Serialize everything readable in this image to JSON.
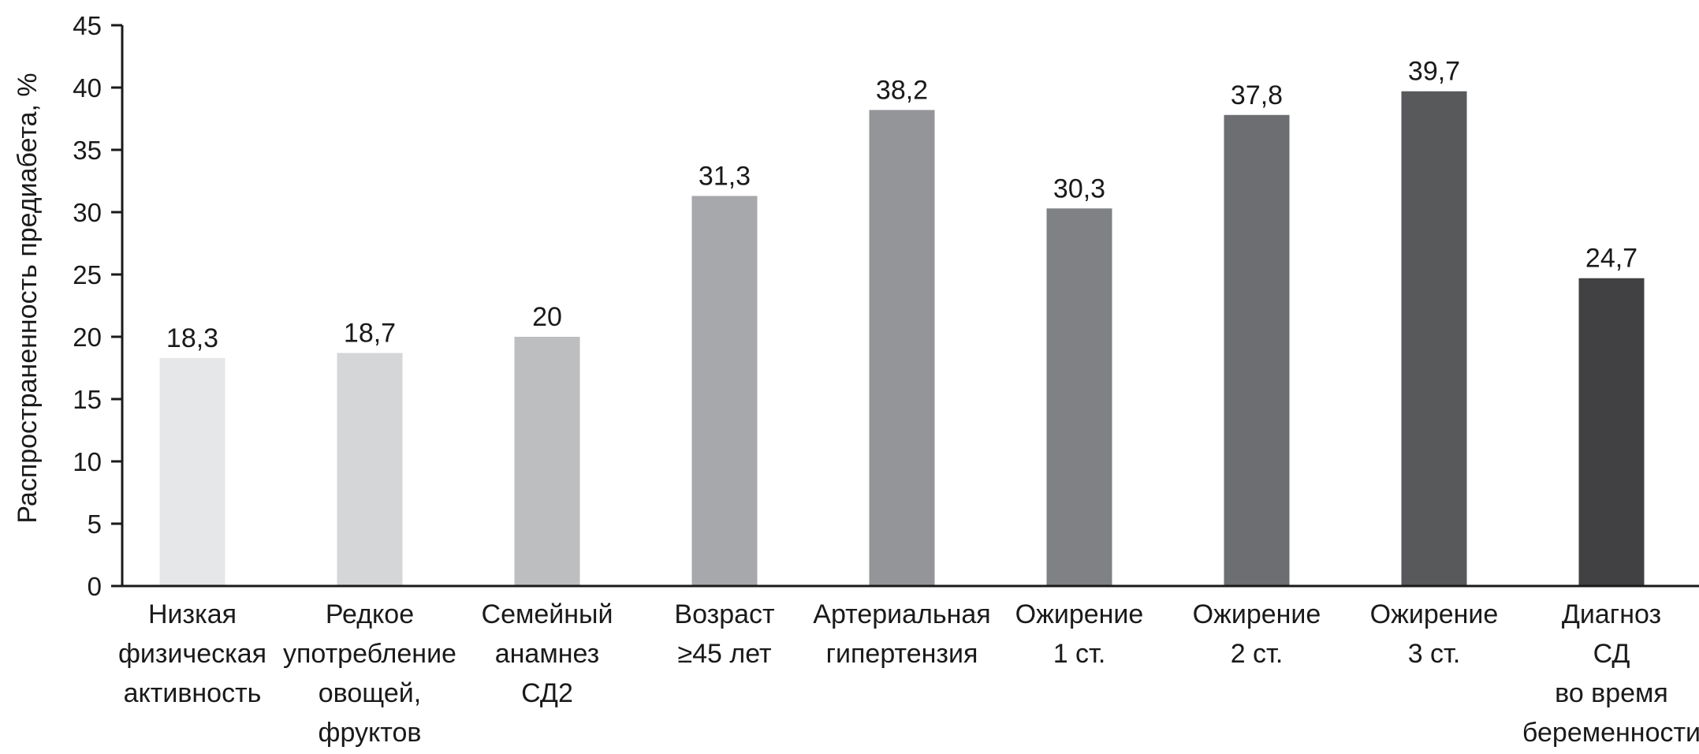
{
  "chart_data": {
    "type": "bar",
    "title": "",
    "xlabel": "",
    "ylabel": "Распространенность предиабета, %",
    "ylim": [
      0,
      45
    ],
    "yticks": [
      0,
      5,
      10,
      15,
      20,
      25,
      30,
      35,
      40,
      45
    ],
    "grid": false,
    "legend": "none",
    "categories": [
      [
        "Низкая",
        "физическая",
        "активность"
      ],
      [
        "Редкое",
        "употребление",
        "овощей,",
        "фруктов"
      ],
      [
        "Семейный",
        "анамнез",
        "СД2"
      ],
      [
        "Возраст",
        "≥45 лет"
      ],
      [
        "Артериальная",
        "гипертензия"
      ],
      [
        "Ожирение",
        "1 ст."
      ],
      [
        "Ожирение",
        "2 ст."
      ],
      [
        "Ожирение",
        "3 ст."
      ],
      [
        "Диагноз",
        "СД",
        "во время",
        "беременности"
      ]
    ],
    "values": [
      18.3,
      18.7,
      20,
      31.3,
      38.2,
      30.3,
      37.8,
      39.7,
      24.7
    ],
    "value_labels": [
      "18,3",
      "18,7",
      "20",
      "31,3",
      "38,2",
      "30,3",
      "37,8",
      "39,7",
      "24,7"
    ],
    "bar_colors": [
      "#e6e7e8",
      "#d5d6d7",
      "#bdbebf",
      "#a7a8ab",
      "#939598",
      "#808184",
      "#6d6e71",
      "#58595b",
      "#414042"
    ]
  }
}
